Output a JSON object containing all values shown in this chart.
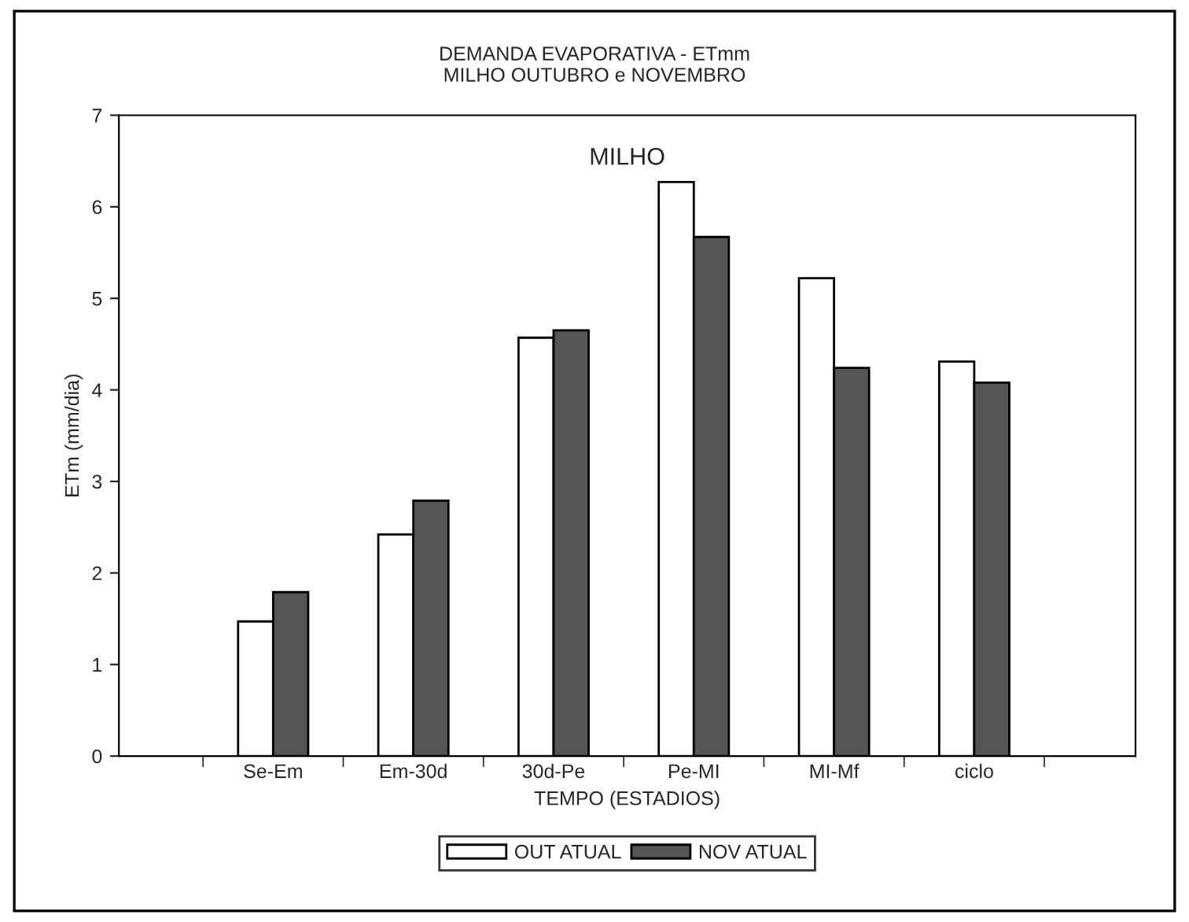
{
  "chart_data": {
    "type": "bar",
    "title": "DEMANDA EVAPORATIVA - ETmm\nMILHO OUTUBRO e NOVEMBRO",
    "xlabel": "TEMPO (ESTADIOS)",
    "ylabel": "ETm (mm/dia)",
    "annotations": [
      "MILHO"
    ],
    "categories": [
      "Se-Em",
      "Em-30d",
      "30d-Pe",
      "Pe-MI",
      "MI-Mf",
      "ciclo"
    ],
    "series": [
      {
        "name": "OUT ATUAL",
        "color": "#ffffff",
        "values": [
          1.47,
          2.42,
          4.57,
          6.27,
          5.22,
          4.31
        ]
      },
      {
        "name": "NOV ATUAL",
        "color": "#555555",
        "values": [
          1.79,
          2.79,
          4.65,
          5.67,
          4.24,
          4.08
        ]
      }
    ],
    "ylim": [
      0,
      7
    ],
    "yticks": [
      0,
      1,
      2,
      3,
      4,
      5,
      6,
      7
    ],
    "grid": false,
    "legend": "bottom"
  }
}
